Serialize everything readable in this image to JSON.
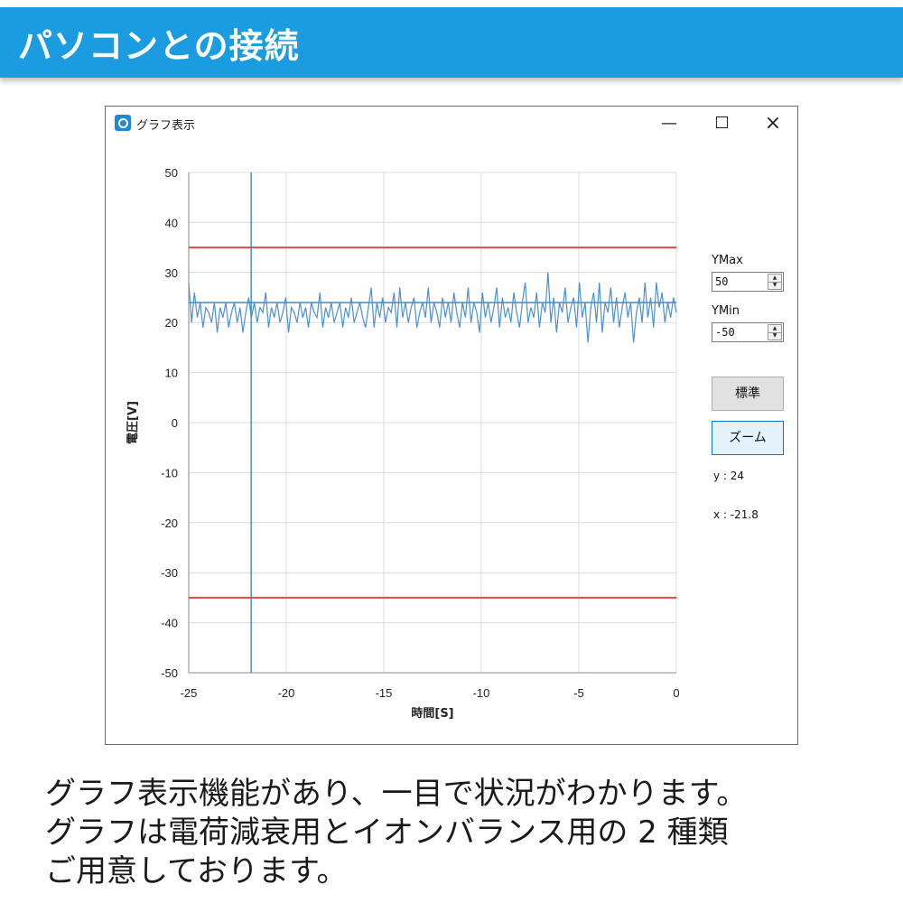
{
  "banner": {
    "title": "パソコンとの接続"
  },
  "window": {
    "title": "グラフ表示",
    "minimize_glyph": "—",
    "close_glyph": "×"
  },
  "controls": {
    "ymax_label": "YMax",
    "ymax_value": "50",
    "ymin_label": "YMin",
    "ymin_value": "-50",
    "standard_button": "標準",
    "zoom_button": "ズーム",
    "y_readout": "y : 24",
    "x_readout": "x : -21.8",
    "spin_up_glyph": "▲",
    "spin_down_glyph": "▼"
  },
  "caption": {
    "lines": [
      "グラフ表示機能があり、一目で状況がわかります。",
      "グラフは電荷減衰用とイオンバランス用の 2 種類",
      "ご用意しております。"
    ]
  },
  "chart_data": {
    "type": "line",
    "xlabel": "時間[S]",
    "ylabel": "電圧[V]",
    "xlim": [
      -25,
      0
    ],
    "ylim": [
      -50,
      50
    ],
    "xticks": [
      "-25",
      "-20",
      "-15",
      "-10",
      "-5",
      "0"
    ],
    "yticks": [
      "50",
      "40",
      "30",
      "20",
      "10",
      "0",
      "-10",
      "-20",
      "-30",
      "-40",
      "-50"
    ],
    "grid": true,
    "upper_limit": 35,
    "lower_limit": -35,
    "baseline": 24,
    "cursor_x": -21.8,
    "limit_color": "#e04a4a",
    "series_color": "#4a90d9",
    "cursor_color": "#2b7fc9",
    "series": [
      {
        "values": [
          28,
          20,
          26,
          21,
          24,
          19,
          23,
          22,
          20,
          24,
          18,
          23,
          21,
          24,
          19,
          22,
          24,
          20,
          23,
          18,
          22,
          25,
          21,
          24,
          20,
          23,
          22,
          26,
          19,
          23,
          21,
          24,
          20,
          22,
          25,
          18,
          23,
          22,
          20,
          24,
          21,
          23,
          19,
          24,
          22,
          21,
          26,
          19,
          23,
          21,
          24,
          20,
          22,
          24,
          19,
          23,
          21,
          25,
          20,
          22,
          24,
          21,
          19,
          23,
          27,
          19,
          24,
          21,
          25,
          20,
          23,
          22,
          26,
          19,
          27,
          21,
          24,
          20,
          23,
          25,
          19,
          22,
          24,
          21,
          27,
          20,
          24,
          22,
          19,
          25,
          21,
          24,
          20,
          26,
          22,
          19,
          24,
          21,
          27,
          20,
          24,
          22,
          18,
          26,
          21,
          24,
          20,
          23,
          27,
          19,
          25,
          21,
          23,
          20,
          26,
          22,
          19,
          24,
          28,
          20,
          23,
          21,
          26,
          19,
          24,
          22,
          30,
          20,
          25,
          18,
          24,
          22,
          27,
          20,
          23,
          25,
          19,
          28,
          21,
          24,
          16,
          23,
          26,
          20,
          28,
          18,
          24,
          22,
          27,
          20,
          25,
          19,
          23,
          26,
          21,
          24,
          16,
          22,
          25,
          20,
          28,
          21,
          25,
          19,
          28,
          23,
          26,
          20,
          24,
          21,
          25,
          22
        ]
      }
    ]
  }
}
